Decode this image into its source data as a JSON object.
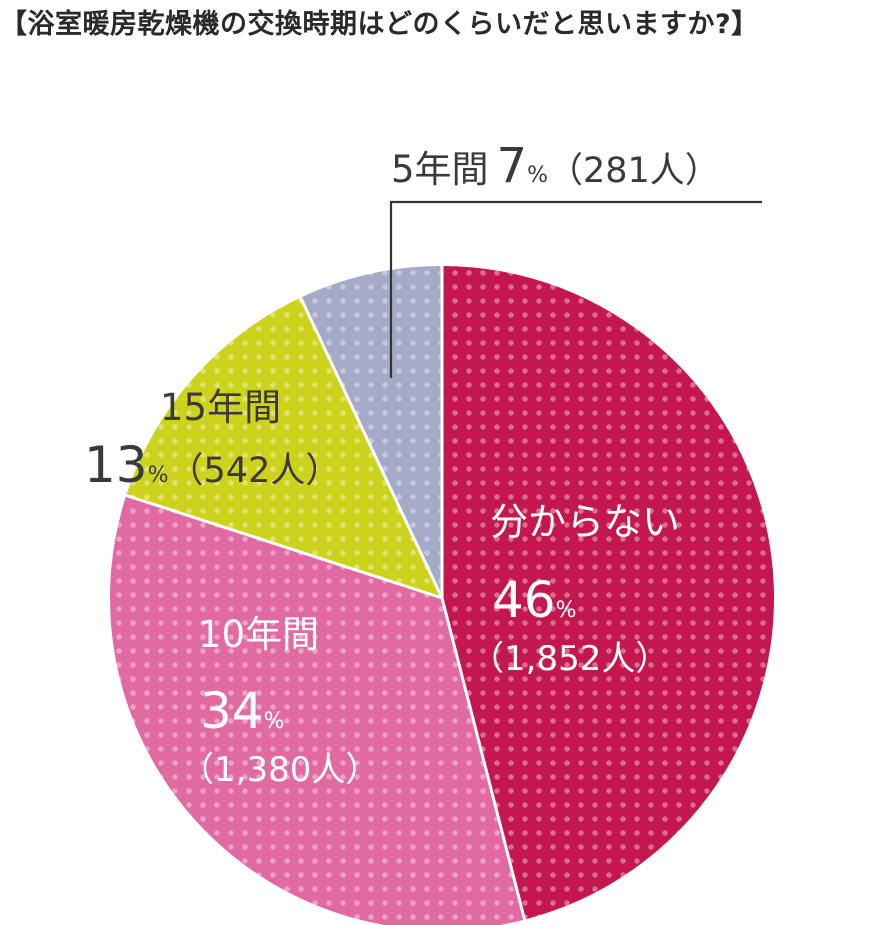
{
  "title": "【浴室暖房乾燥機の交換時期はどのくらいだと思いますか?】",
  "colors": {
    "unknown": "#c5174f",
    "ten_years": "#e26aa3",
    "fifteen_years": "#cdd31c",
    "five_years": "#a5aac8",
    "dot": "#ffffff",
    "line": "#333333"
  },
  "chart_data": {
    "type": "pie",
    "title": "【浴室暖房乾燥機の交換時期はどのくらいだと思いますか?】",
    "start": "12 o'clock, clockwise",
    "slices": [
      {
        "label": "分からない",
        "percent": 46,
        "count": "1,852人",
        "color": "#c5174f"
      },
      {
        "label": "10年間",
        "percent": 34,
        "count": "1,380人",
        "color": "#e26aa3"
      },
      {
        "label": "15年間",
        "percent": 13,
        "count": "542人",
        "color": "#cdd31c"
      },
      {
        "label": "5年間",
        "percent": 7,
        "count": "281人",
        "color": "#a5aac8"
      }
    ],
    "labels": {
      "unknown": {
        "name": "分からない",
        "pct": "46",
        "unit": "%",
        "count": "（1,852人）"
      },
      "ten": {
        "name": "10年間",
        "pct": "34",
        "unit": "%",
        "count": "（1,380人）"
      },
      "fifteen": {
        "name": "15年間",
        "pct": "13",
        "unit": "%",
        "count": "（542人）"
      },
      "five": {
        "name": "5年間",
        "pct": "7",
        "unit": "%",
        "count": "（281人）"
      }
    },
    "legend": "none (labels on slices)"
  }
}
